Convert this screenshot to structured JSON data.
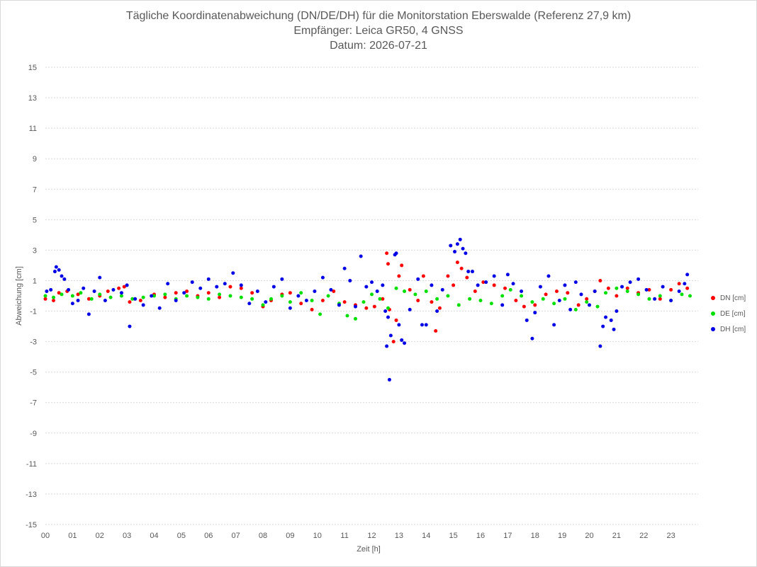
{
  "chart_data": {
    "type": "scatter",
    "title": "Tägliche Koordinatenabweichung (DN/DE/DH) für die Monitorstation Eberswalde (Referenz 27,9 km)",
    "subtitle1": "Empfänger: Leica GR50, 4 GNSS",
    "subtitle2": "Datum: 2026-07-21",
    "xlabel": "Zeit [h]",
    "ylabel": "Abweichung [cm]",
    "xlim": [
      0,
      24
    ],
    "ylim": [
      -15,
      15
    ],
    "x_ticks": [
      "00",
      "01",
      "02",
      "03",
      "04",
      "05",
      "06",
      "07",
      "08",
      "09",
      "10",
      "11",
      "12",
      "13",
      "14",
      "15",
      "16",
      "17",
      "18",
      "19",
      "20",
      "21",
      "22",
      "23"
    ],
    "y_ticks": [
      "15",
      "13",
      "11",
      "9",
      "7",
      "5",
      "3",
      "1",
      "-1",
      "-3",
      "-5",
      "-7",
      "-9",
      "-11",
      "-13",
      "-15"
    ],
    "grid": "horizontal dotted",
    "legend_position": "right",
    "series": [
      {
        "name": "DN [cm]",
        "color": "#ff0000",
        "points": [
          [
            0.0,
            -0.2
          ],
          [
            0.3,
            -0.3
          ],
          [
            0.5,
            0.2
          ],
          [
            0.8,
            0.3
          ],
          [
            1.2,
            0.1
          ],
          [
            1.6,
            -0.2
          ],
          [
            2.0,
            0.0
          ],
          [
            2.3,
            0.3
          ],
          [
            2.7,
            0.5
          ],
          [
            2.9,
            0.6
          ],
          [
            3.1,
            -0.4
          ],
          [
            3.5,
            -0.3
          ],
          [
            4.0,
            0.1
          ],
          [
            4.4,
            -0.1
          ],
          [
            4.8,
            0.2
          ],
          [
            5.2,
            0.3
          ],
          [
            5.6,
            0.0
          ],
          [
            6.0,
            0.2
          ],
          [
            6.4,
            -0.1
          ],
          [
            6.8,
            0.6
          ],
          [
            7.2,
            0.5
          ],
          [
            7.6,
            0.2
          ],
          [
            8.0,
            -0.7
          ],
          [
            8.3,
            -0.3
          ],
          [
            8.7,
            0.1
          ],
          [
            9.0,
            0.2
          ],
          [
            9.4,
            -0.5
          ],
          [
            9.8,
            -0.9
          ],
          [
            10.2,
            -0.3
          ],
          [
            10.6,
            0.3
          ],
          [
            11.0,
            -0.4
          ],
          [
            11.4,
            -0.6
          ],
          [
            11.8,
            -0.8
          ],
          [
            12.1,
            -0.7
          ],
          [
            12.4,
            -0.2
          ],
          [
            12.55,
            2.8
          ],
          [
            12.6,
            2.1
          ],
          [
            12.65,
            -0.9
          ],
          [
            12.8,
            -3.0
          ],
          [
            12.9,
            -1.6
          ],
          [
            13.0,
            1.3
          ],
          [
            13.1,
            2.0
          ],
          [
            13.4,
            0.4
          ],
          [
            13.7,
            -0.3
          ],
          [
            13.9,
            1.3
          ],
          [
            14.2,
            -0.4
          ],
          [
            14.35,
            -2.3
          ],
          [
            14.5,
            -0.8
          ],
          [
            14.8,
            1.3
          ],
          [
            15.0,
            0.7
          ],
          [
            15.15,
            2.2
          ],
          [
            15.3,
            1.8
          ],
          [
            15.5,
            1.2
          ],
          [
            15.8,
            0.3
          ],
          [
            16.1,
            0.9
          ],
          [
            16.5,
            0.7
          ],
          [
            16.9,
            0.5
          ],
          [
            17.3,
            -0.3
          ],
          [
            17.6,
            -0.7
          ],
          [
            18.0,
            -0.6
          ],
          [
            18.4,
            0.1
          ],
          [
            18.8,
            0.3
          ],
          [
            19.2,
            0.2
          ],
          [
            19.6,
            -0.6
          ],
          [
            19.9,
            -0.2
          ],
          [
            20.2,
            0.3
          ],
          [
            20.4,
            1.0
          ],
          [
            20.7,
            0.5
          ],
          [
            21.0,
            0.0
          ],
          [
            21.4,
            0.5
          ],
          [
            21.8,
            0.2
          ],
          [
            22.2,
            0.4
          ],
          [
            22.6,
            -0.2
          ],
          [
            23.0,
            0.4
          ],
          [
            23.3,
            0.8
          ],
          [
            23.6,
            0.5
          ]
        ]
      },
      {
        "name": "DE [cm]",
        "color": "#00e000",
        "points": [
          [
            0.0,
            0.0
          ],
          [
            0.3,
            -0.1
          ],
          [
            0.6,
            0.1
          ],
          [
            1.0,
            0.0
          ],
          [
            1.3,
            0.2
          ],
          [
            1.7,
            -0.2
          ],
          [
            2.0,
            0.1
          ],
          [
            2.4,
            -0.1
          ],
          [
            2.8,
            0.0
          ],
          [
            3.2,
            -0.2
          ],
          [
            3.6,
            -0.1
          ],
          [
            4.0,
            0.0
          ],
          [
            4.4,
            0.1
          ],
          [
            4.8,
            -0.2
          ],
          [
            5.2,
            0.0
          ],
          [
            5.6,
            -0.1
          ],
          [
            6.0,
            -0.2
          ],
          [
            6.4,
            0.1
          ],
          [
            6.8,
            0.0
          ],
          [
            7.2,
            -0.1
          ],
          [
            7.6,
            -0.2
          ],
          [
            8.0,
            -0.6
          ],
          [
            8.3,
            -0.2
          ],
          [
            8.7,
            0.0
          ],
          [
            9.0,
            -0.4
          ],
          [
            9.4,
            0.2
          ],
          [
            9.8,
            -0.3
          ],
          [
            10.1,
            -1.2
          ],
          [
            10.4,
            0.0
          ],
          [
            10.8,
            -0.5
          ],
          [
            11.1,
            -1.3
          ],
          [
            11.4,
            -1.5
          ],
          [
            11.7,
            -0.4
          ],
          [
            12.0,
            0.1
          ],
          [
            12.3,
            -0.2
          ],
          [
            12.6,
            -0.8
          ],
          [
            12.9,
            0.5
          ],
          [
            13.2,
            0.3
          ],
          [
            13.6,
            0.1
          ],
          [
            14.0,
            0.3
          ],
          [
            14.4,
            -0.2
          ],
          [
            14.8,
            0.0
          ],
          [
            15.2,
            -0.6
          ],
          [
            15.6,
            -0.2
          ],
          [
            16.0,
            -0.3
          ],
          [
            16.4,
            -0.5
          ],
          [
            16.8,
            0.0
          ],
          [
            17.1,
            0.4
          ],
          [
            17.5,
            0.0
          ],
          [
            17.9,
            -0.4
          ],
          [
            18.3,
            -0.2
          ],
          [
            18.7,
            -0.5
          ],
          [
            19.1,
            -0.2
          ],
          [
            19.5,
            -0.9
          ],
          [
            19.9,
            -0.4
          ],
          [
            20.3,
            -0.7
          ],
          [
            20.6,
            0.2
          ],
          [
            21.0,
            0.5
          ],
          [
            21.4,
            0.3
          ],
          [
            21.8,
            0.1
          ],
          [
            22.2,
            -0.2
          ],
          [
            22.6,
            0.0
          ],
          [
            23.0,
            -0.3
          ],
          [
            23.4,
            0.1
          ],
          [
            23.7,
            0.0
          ]
        ]
      },
      {
        "name": "DH [cm]",
        "color": "#0000e6",
        "points": [
          [
            0.05,
            0.3
          ],
          [
            0.2,
            0.4
          ],
          [
            0.35,
            1.6
          ],
          [
            0.4,
            1.9
          ],
          [
            0.5,
            1.7
          ],
          [
            0.6,
            1.3
          ],
          [
            0.7,
            1.1
          ],
          [
            0.85,
            0.4
          ],
          [
            1.0,
            -0.5
          ],
          [
            1.2,
            -0.3
          ],
          [
            1.4,
            0.5
          ],
          [
            1.6,
            -1.2
          ],
          [
            1.8,
            0.3
          ],
          [
            2.0,
            1.2
          ],
          [
            2.2,
            -0.3
          ],
          [
            2.5,
            0.4
          ],
          [
            2.8,
            0.2
          ],
          [
            3.0,
            0.7
          ],
          [
            3.1,
            -2.0
          ],
          [
            3.3,
            -0.2
          ],
          [
            3.6,
            -0.6
          ],
          [
            3.9,
            0.0
          ],
          [
            4.2,
            -0.8
          ],
          [
            4.5,
            0.8
          ],
          [
            4.8,
            -0.3
          ],
          [
            5.1,
            0.2
          ],
          [
            5.4,
            0.9
          ],
          [
            5.7,
            0.5
          ],
          [
            6.0,
            1.1
          ],
          [
            6.3,
            0.6
          ],
          [
            6.6,
            0.8
          ],
          [
            6.9,
            1.5
          ],
          [
            7.2,
            0.7
          ],
          [
            7.5,
            -0.5
          ],
          [
            7.8,
            0.3
          ],
          [
            8.1,
            -0.4
          ],
          [
            8.4,
            0.6
          ],
          [
            8.7,
            1.1
          ],
          [
            9.0,
            -0.8
          ],
          [
            9.3,
            0.0
          ],
          [
            9.6,
            -0.3
          ],
          [
            9.9,
            0.3
          ],
          [
            10.2,
            1.2
          ],
          [
            10.5,
            0.4
          ],
          [
            10.8,
            -0.6
          ],
          [
            11.0,
            1.8
          ],
          [
            11.2,
            1.0
          ],
          [
            11.4,
            -0.7
          ],
          [
            11.6,
            2.6
          ],
          [
            11.8,
            0.6
          ],
          [
            12.0,
            0.9
          ],
          [
            12.2,
            0.3
          ],
          [
            12.4,
            0.7
          ],
          [
            12.5,
            -1.0
          ],
          [
            12.55,
            -3.3
          ],
          [
            12.6,
            -1.4
          ],
          [
            12.65,
            -5.5
          ],
          [
            12.7,
            -2.6
          ],
          [
            12.85,
            2.7
          ],
          [
            12.9,
            2.8
          ],
          [
            13.0,
            -1.9
          ],
          [
            13.1,
            -2.9
          ],
          [
            13.2,
            -3.1
          ],
          [
            13.4,
            -0.9
          ],
          [
            13.7,
            1.1
          ],
          [
            13.85,
            -1.9
          ],
          [
            14.0,
            -1.9
          ],
          [
            14.2,
            0.7
          ],
          [
            14.4,
            -1.0
          ],
          [
            14.6,
            0.4
          ],
          [
            14.9,
            3.3
          ],
          [
            15.05,
            2.9
          ],
          [
            15.15,
            3.4
          ],
          [
            15.25,
            3.7
          ],
          [
            15.35,
            3.1
          ],
          [
            15.45,
            2.8
          ],
          [
            15.55,
            1.6
          ],
          [
            15.7,
            1.6
          ],
          [
            15.9,
            0.7
          ],
          [
            16.2,
            0.9
          ],
          [
            16.5,
            1.3
          ],
          [
            16.8,
            -0.6
          ],
          [
            17.0,
            1.4
          ],
          [
            17.2,
            0.8
          ],
          [
            17.5,
            0.3
          ],
          [
            17.7,
            -1.6
          ],
          [
            17.9,
            -2.8
          ],
          [
            18.0,
            -1.1
          ],
          [
            18.2,
            0.6
          ],
          [
            18.5,
            1.3
          ],
          [
            18.7,
            -1.9
          ],
          [
            18.9,
            -0.3
          ],
          [
            19.1,
            0.7
          ],
          [
            19.3,
            -0.9
          ],
          [
            19.5,
            0.9
          ],
          [
            19.7,
            0.1
          ],
          [
            20.0,
            -0.6
          ],
          [
            20.2,
            0.3
          ],
          [
            20.4,
            -3.3
          ],
          [
            20.5,
            -2.0
          ],
          [
            20.6,
            -1.4
          ],
          [
            20.8,
            -1.6
          ],
          [
            20.9,
            -2.2
          ],
          [
            21.0,
            -1.0
          ],
          [
            21.2,
            0.6
          ],
          [
            21.5,
            0.9
          ],
          [
            21.8,
            1.1
          ],
          [
            22.1,
            0.4
          ],
          [
            22.4,
            -0.2
          ],
          [
            22.7,
            0.6
          ],
          [
            23.0,
            -0.3
          ],
          [
            23.3,
            0.3
          ],
          [
            23.5,
            0.8
          ],
          [
            23.6,
            1.4
          ]
        ]
      }
    ]
  }
}
